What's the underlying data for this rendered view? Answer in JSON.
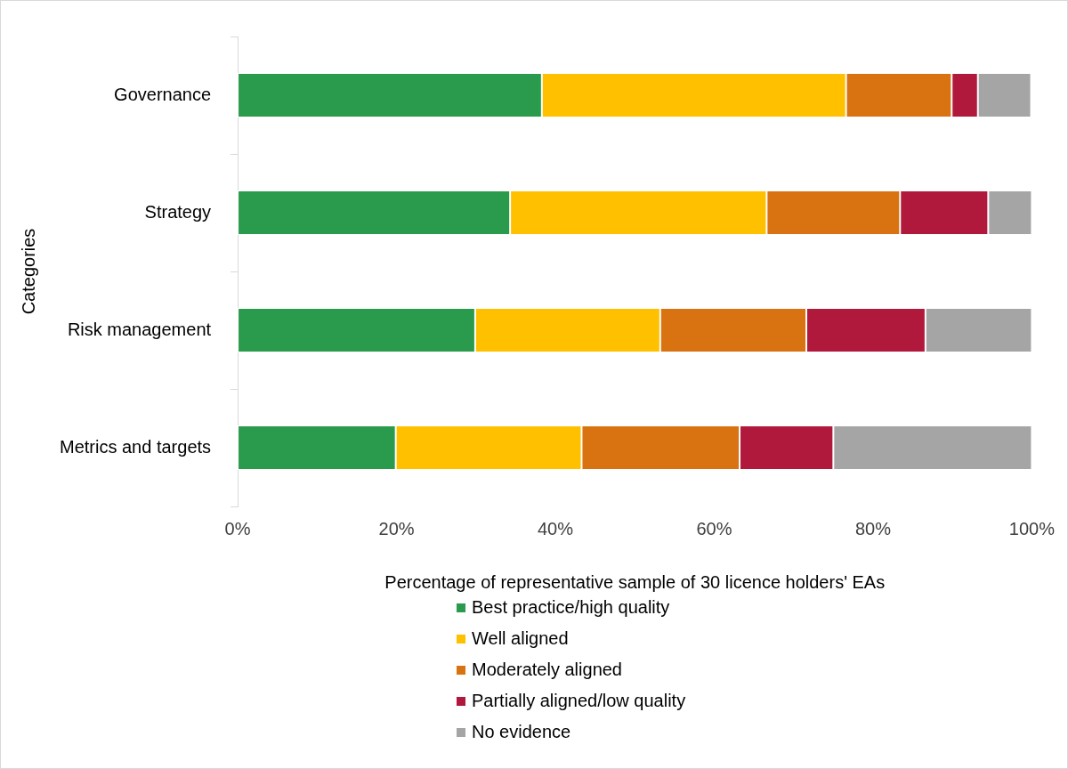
{
  "chart_data": {
    "type": "bar",
    "orientation": "horizontal",
    "stacked": true,
    "xlabel": "Percentage of representative sample of 30 licence holders' EAs",
    "ylabel": "Categories",
    "categories": [
      "Governance",
      "Strategy",
      "Risk management",
      "Metrics and targets"
    ],
    "series": [
      {
        "name": "Best practice/high quality",
        "color": "#2a9a4c",
        "values": [
          38.3,
          34.3,
          29.9,
          19.9
        ]
      },
      {
        "name": "Well aligned",
        "color": "#ffc000",
        "values": [
          38.3,
          32.3,
          23.3,
          23.4
        ]
      },
      {
        "name": "Moderately aligned",
        "color": "#d97312",
        "values": [
          13.3,
          16.8,
          18.4,
          19.9
        ]
      },
      {
        "name": "Partially aligned/low quality",
        "color": "#b0183c",
        "values": [
          3.3,
          11.1,
          15.0,
          11.8
        ]
      },
      {
        "name": "No evidence",
        "color": "#a5a5a5",
        "values": [
          6.7,
          5.5,
          13.4,
          25.0
        ]
      }
    ],
    "xlim": [
      0,
      100
    ],
    "xticks": [
      {
        "value": 0,
        "label": "0%"
      },
      {
        "value": 20,
        "label": "20%"
      },
      {
        "value": 40,
        "label": "40%"
      },
      {
        "value": 60,
        "label": "60%"
      },
      {
        "value": 80,
        "label": "80%"
      },
      {
        "value": 100,
        "label": "100%"
      }
    ],
    "grid": false,
    "legend": "bottom"
  }
}
